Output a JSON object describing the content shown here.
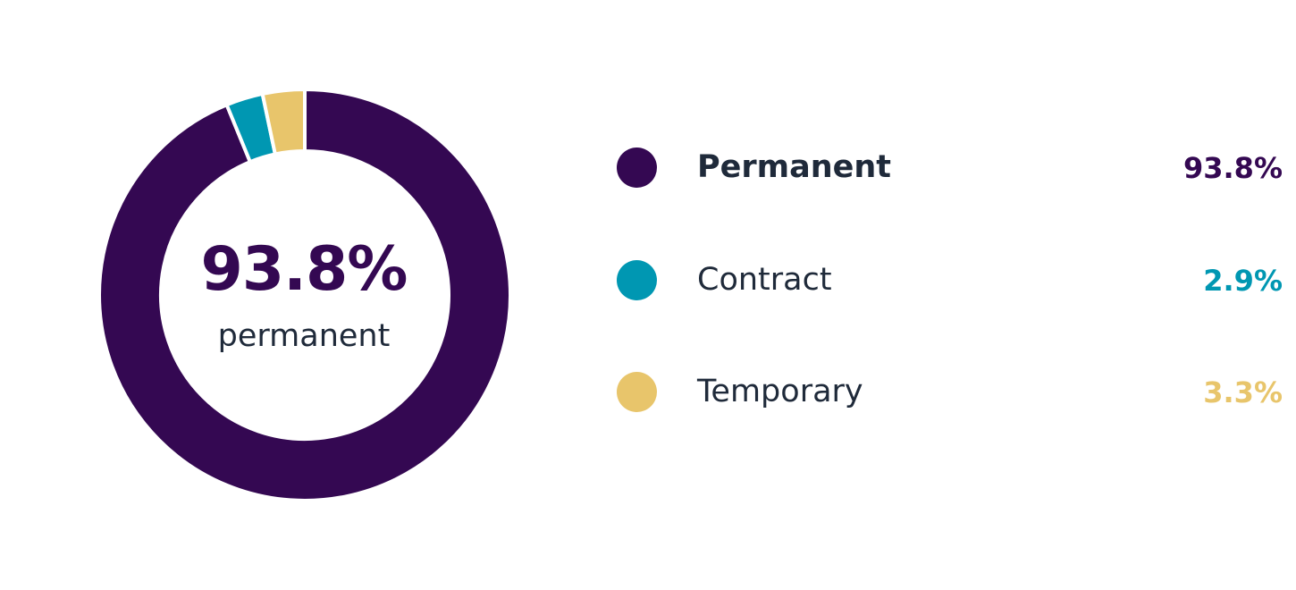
{
  "chart_data": {
    "type": "pie",
    "variant": "donut",
    "categories": [
      "Permanent",
      "Contract",
      "Temporary"
    ],
    "values": [
      93.8,
      2.9,
      3.3
    ],
    "value_labels": [
      "93.8%",
      "2.9%",
      "3.3%"
    ],
    "colors": [
      "#340852",
      "#0097b2",
      "#e8c56b"
    ],
    "center_value": "93.8%",
    "center_caption": "permanent",
    "legend_placement": "right"
  }
}
